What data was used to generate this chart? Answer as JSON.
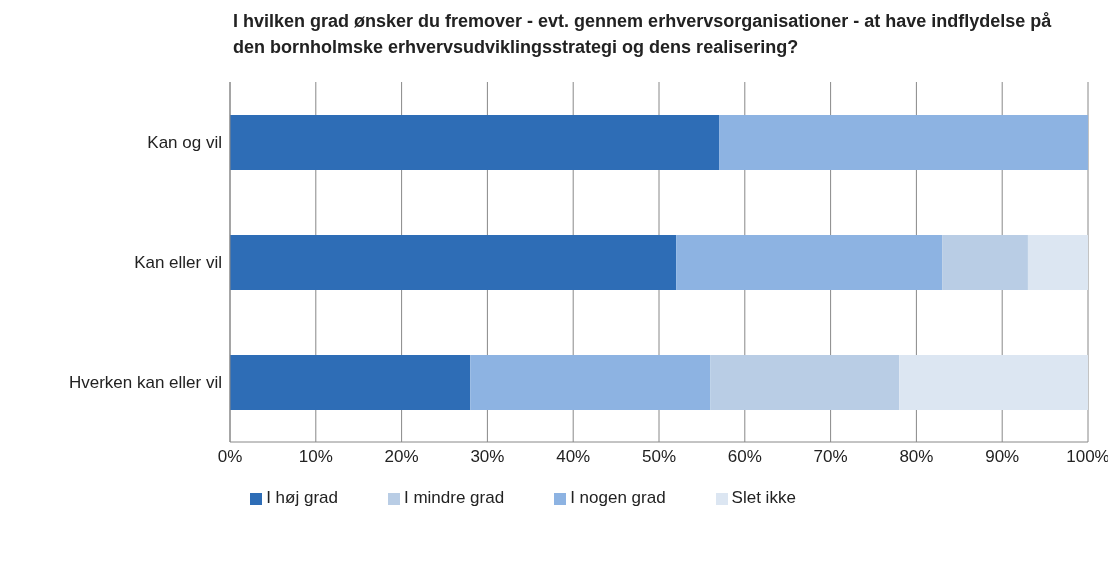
{
  "chart_data": {
    "type": "bar",
    "orientation": "horizontal",
    "stacked": true,
    "title": "I hvilken grad ønsker du fremover - evt. gennem erhvervsorganisationer  - at have indflydelse på den bornholmske  erhvervsudviklingsstrategi  og dens realisering?",
    "categories": [
      "Kan og vil",
      "Kan eller vil",
      "Hverken kan eller vil"
    ],
    "series": [
      {
        "name": "I høj grad",
        "color": "#2e6db6",
        "values": [
          57,
          52,
          28
        ]
      },
      {
        "name": "I nogen grad",
        "color": "#8db3e2",
        "values": [
          43,
          31,
          28
        ]
      },
      {
        "name": "I mindre grad",
        "color": "#b9cde5",
        "values": [
          null,
          10,
          22
        ]
      },
      {
        "name": "Slet ikke",
        "color": "#dce6f2",
        "values": [
          null,
          7,
          22
        ]
      }
    ],
    "xlim": [
      0,
      100
    ],
    "xticks": [
      {
        "value": 0,
        "label": "0%"
      },
      {
        "value": 10,
        "label": "10%"
      },
      {
        "value": 20,
        "label": "20%"
      },
      {
        "value": 30,
        "label": "30%"
      },
      {
        "value": 40,
        "label": "40%"
      },
      {
        "value": 50,
        "label": "50%"
      },
      {
        "value": 60,
        "label": "60%"
      },
      {
        "value": 70,
        "label": "70%"
      },
      {
        "value": 80,
        "label": "80%"
      },
      {
        "value": 90,
        "label": "90%"
      },
      {
        "value": 100,
        "label": "100%"
      }
    ],
    "grid": "x",
    "legend": "bottom"
  }
}
